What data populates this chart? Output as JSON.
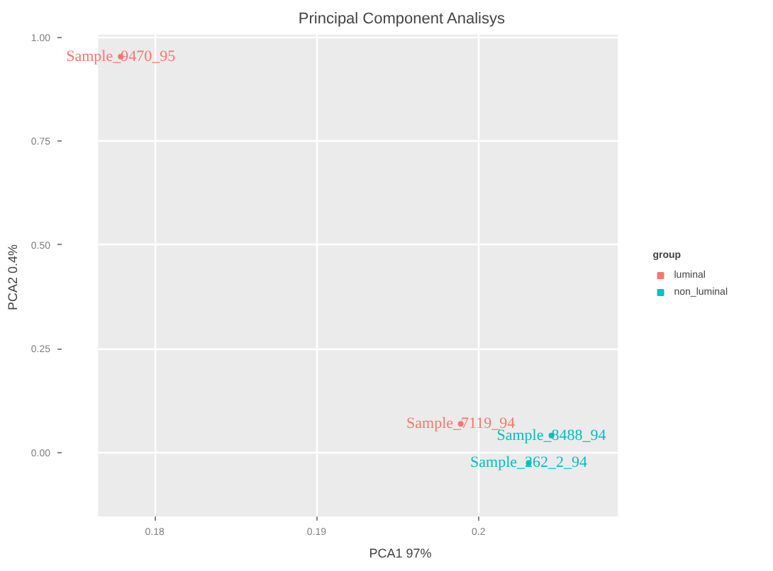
{
  "chart_data": {
    "type": "scatter",
    "title": "Principal Component Analisys",
    "xlabel": "PCA1  97%",
    "ylabel": "PCA2  0.4%",
    "legend_title": "group",
    "xlim": [
      0.1765,
      0.2086
    ],
    "ylim": [
      -0.154,
      1.006
    ],
    "xticks": [
      0.18,
      0.19,
      0.2
    ],
    "yticks": [
      {
        "value": 0,
        "label": "0.00"
      },
      0.25,
      {
        "value": 0.5,
        "label": "0.50"
      },
      0.75,
      {
        "value": 1,
        "label": "1.00"
      }
    ],
    "grid": true,
    "legend": "right",
    "marker": "circle",
    "series": [
      {
        "name": "luminal",
        "color": "#f8766d",
        "x": [
          0.1779,
          0.1989
        ],
        "values": [
          0.953,
          0.069
        ],
        "value_labels": [
          "Sample_9470_95",
          "Sample_7119_94"
        ]
      },
      {
        "name": "non_luminal",
        "color": "#00bfc4",
        "x": [
          0.2045,
          0.2031
        ],
        "values": [
          0.041,
          -0.025
        ],
        "value_labels": [
          "Sample_8488_94",
          "Sample_262_2_94"
        ]
      }
    ]
  }
}
